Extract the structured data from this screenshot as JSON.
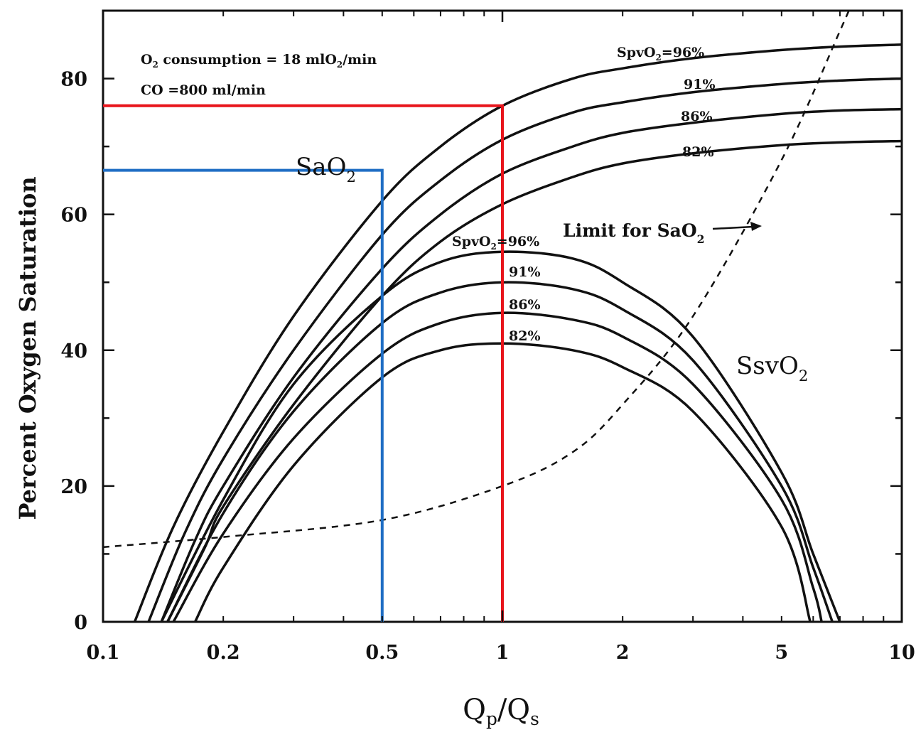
{
  "chart_data": {
    "type": "line",
    "xscale": "log",
    "xlim": [
      0.1,
      10
    ],
    "ylim": [
      0,
      90
    ],
    "grid": false,
    "xlabel": {
      "main": "Q",
      "sub1": "p",
      "sep": "/Q",
      "sub2": "s"
    },
    "ylabel": "Percent Oxygen Saturation",
    "xticks": [
      0.1,
      0.2,
      0.5,
      1,
      2,
      5,
      10
    ],
    "xtick_labels": [
      "0.1",
      "0.2",
      "0.5",
      "1",
      "2",
      "5",
      "10"
    ],
    "yticks": [
      0,
      20,
      40,
      60,
      80
    ],
    "ytick_labels": [
      "0",
      "20",
      "40",
      "60",
      "80"
    ],
    "annotations": {
      "o2_consumption": {
        "pre": "O",
        "sub": "2",
        "post": " consumption = 18 mlO",
        "sub2": "2",
        "tail": "/min"
      },
      "co": "CO =800 ml/min",
      "limit": {
        "pre": "Limit for SaO",
        "sub": "2"
      },
      "sao2": {
        "pre": "SaO",
        "sub": "2"
      },
      "ssvo2": {
        "pre": "SsvO",
        "sub": "2"
      },
      "spvo2_upper": {
        "pre": "SpvO",
        "sub": "2",
        "post": "=96%"
      },
      "spvo2_lower": {
        "pre": "SpvO",
        "sub": "2",
        "post": "=96%"
      }
    },
    "sao2_series": [
      {
        "label": "SpvO2=96%",
        "tag": "96%",
        "x": [
          0.12,
          0.15,
          0.2,
          0.3,
          0.5,
          0.7,
          1,
          1.5,
          2,
          3,
          5,
          7,
          10
        ],
        "y": [
          0,
          14,
          28,
          45,
          62,
          70,
          76,
          80,
          81.5,
          83,
          84.2,
          84.7,
          85
        ]
      },
      {
        "label": "91%",
        "tag": "91%",
        "x": [
          0.13,
          0.16,
          0.2,
          0.3,
          0.5,
          0.7,
          1,
          1.5,
          2,
          3,
          5,
          7,
          10
        ],
        "y": [
          0,
          13,
          24,
          40,
          57,
          65,
          71,
          75,
          76.5,
          78,
          79.2,
          79.7,
          80
        ]
      },
      {
        "label": "86%",
        "tag": "86%",
        "x": [
          0.14,
          0.17,
          0.2,
          0.3,
          0.5,
          0.7,
          1,
          1.5,
          2,
          3,
          5,
          7,
          10
        ],
        "y": [
          0,
          12,
          20,
          36,
          52,
          60,
          66,
          70,
          72,
          73.5,
          74.8,
          75.3,
          75.5
        ]
      },
      {
        "label": "82%",
        "tag": "82%",
        "x": [
          0.145,
          0.18,
          0.2,
          0.3,
          0.5,
          0.7,
          1,
          1.5,
          2,
          3,
          5,
          7,
          10
        ],
        "y": [
          0,
          11,
          17,
          32,
          48,
          56,
          61.5,
          65.5,
          67.5,
          69,
          70.2,
          70.6,
          70.8
        ]
      }
    ],
    "ssvo2_series": [
      {
        "label": "SpvO2=96%",
        "tag": "",
        "x": [
          0.14,
          0.2,
          0.3,
          0.5,
          0.7,
          1,
          1.5,
          2,
          3,
          5,
          6,
          7
        ],
        "y": [
          0,
          18,
          35,
          48,
          53,
          54.5,
          53.5,
          50,
          42,
          22,
          10,
          0
        ]
      },
      {
        "label": "91%",
        "tag": "91%",
        "x": [
          0.145,
          0.2,
          0.3,
          0.5,
          0.7,
          1,
          1.5,
          2,
          3,
          5,
          6,
          6.7
        ],
        "y": [
          0,
          16,
          31,
          44,
          48.5,
          50,
          49,
          46,
          38.5,
          20,
          8,
          0
        ]
      },
      {
        "label": "86%",
        "tag": "86%",
        "x": [
          0.15,
          0.2,
          0.3,
          0.5,
          0.7,
          1,
          1.5,
          2,
          3,
          5,
          6,
          6.3
        ],
        "y": [
          0,
          13,
          27,
          39.5,
          44,
          45.5,
          44.5,
          42,
          35,
          18,
          5,
          0
        ]
      },
      {
        "label": "82%",
        "tag": "82%",
        "x": [
          0.17,
          0.2,
          0.3,
          0.5,
          0.7,
          1,
          1.5,
          2,
          3,
          5,
          5.9
        ],
        "y": [
          0,
          8,
          23,
          36,
          40,
          41,
          40,
          37.5,
          31,
          14,
          0
        ]
      }
    ],
    "limit_for_sao2": {
      "x": [
        0.1,
        0.2,
        0.5,
        1,
        1.5,
        2,
        3,
        5,
        7,
        8
      ],
      "y": [
        11,
        12.5,
        15,
        20,
        25,
        32,
        45,
        68,
        87,
        95
      ]
    },
    "highlight_lines": [
      {
        "color": "#e8141b",
        "x": 1.0,
        "y": 76
      },
      {
        "color": "#1f6ec4",
        "x": 0.5,
        "y": 66.5
      }
    ]
  }
}
